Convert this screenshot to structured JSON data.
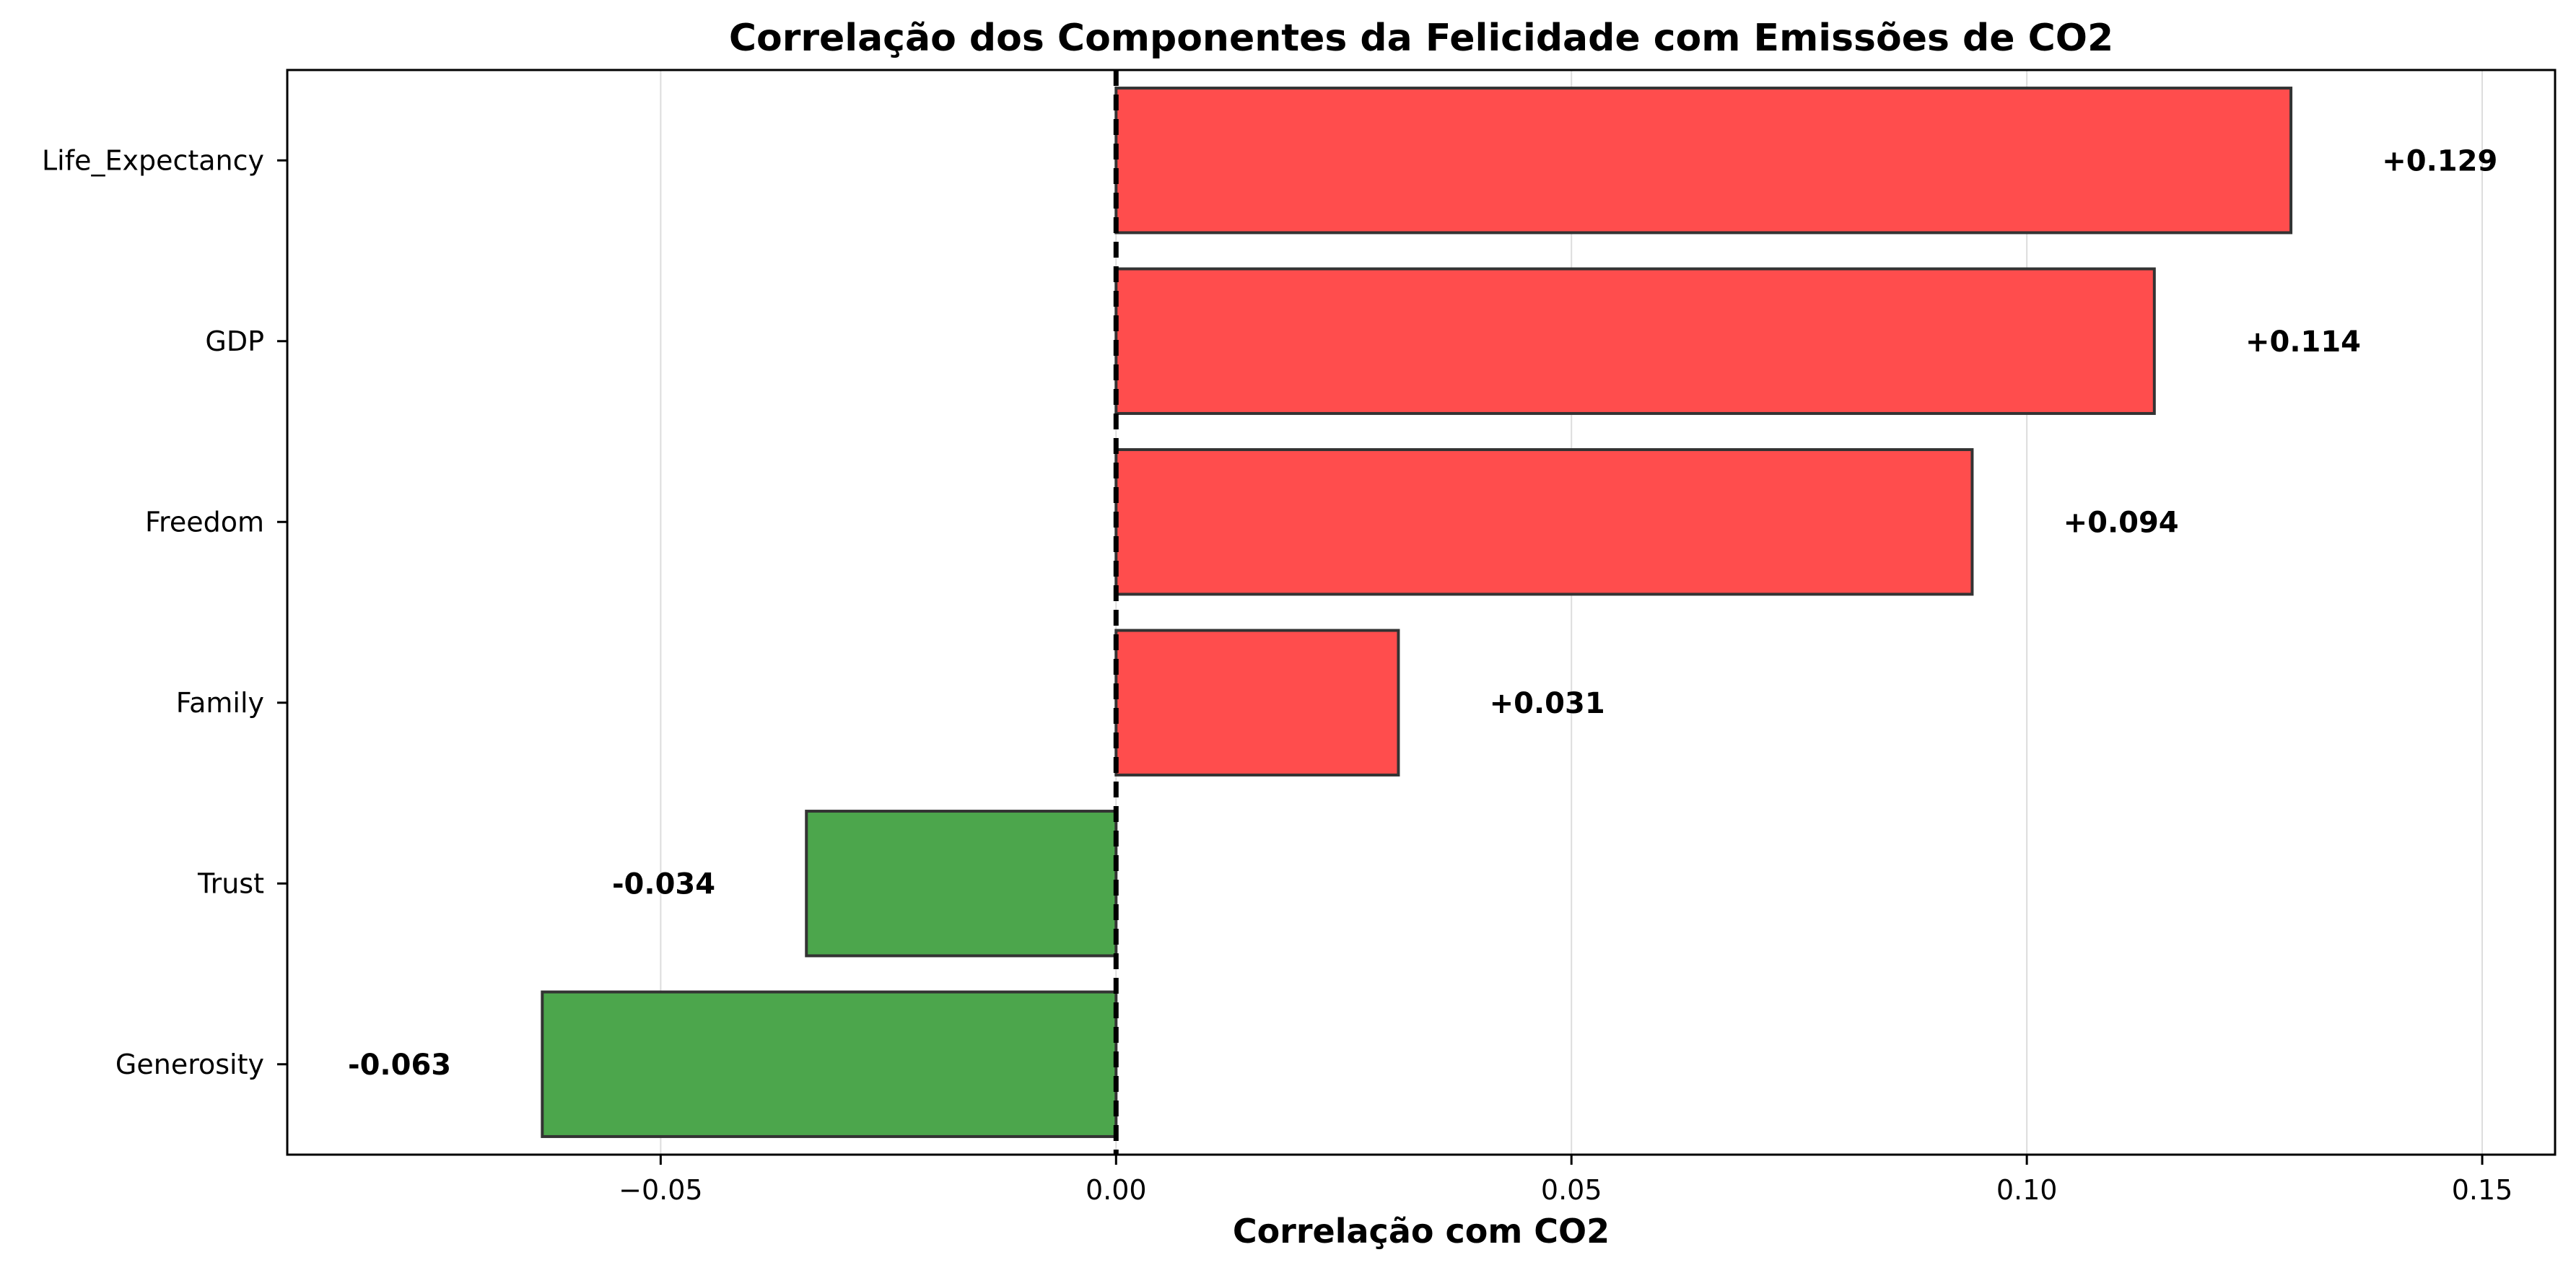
{
  "chart_data": {
    "type": "bar",
    "orientation": "horizontal",
    "title": "Correlação dos Componentes da Felicidade com Emissões de CO2",
    "xlabel": "Correlação com CO2",
    "ylabel": "",
    "xlim": [
      -0.091,
      0.158
    ],
    "xticks": [
      -0.05,
      0.0,
      0.05,
      0.1,
      0.15
    ],
    "xtick_labels": [
      "−0.05",
      "0.00",
      "0.05",
      "0.10",
      "0.15"
    ],
    "grid": "vertical",
    "reference_line": {
      "x": 0,
      "style": "dashed",
      "color": "#000000"
    },
    "categories": [
      "Life_Expectancy",
      "GDP",
      "Freedom",
      "Family",
      "Trust",
      "Generosity"
    ],
    "values": [
      0.129,
      0.114,
      0.094,
      0.031,
      -0.034,
      -0.063
    ],
    "data_labels": [
      "+0.129",
      "+0.114",
      "+0.094",
      "+0.031",
      "-0.034",
      "-0.063"
    ],
    "colors": {
      "positive": "#ff4d4d",
      "negative": "#4ca64c",
      "edge": "#333333"
    }
  }
}
